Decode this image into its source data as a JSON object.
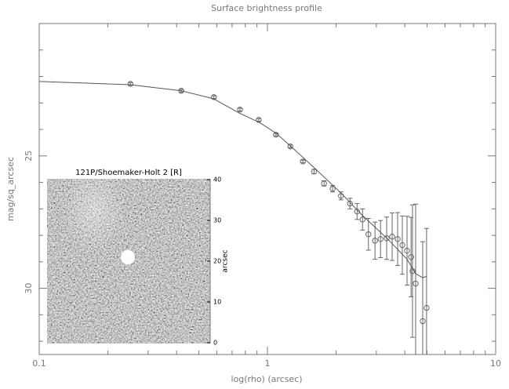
{
  "chart_data": {
    "type": "scatter",
    "title": "Surface brightness profile",
    "x_label": "log(rho) (arcsec)",
    "y_label": "mag/sq_arcsec",
    "x_scale": "log",
    "xlim": [
      0.1,
      10
    ],
    "xticks": [
      0.1,
      1,
      10
    ],
    "x_minor_ticks": [
      0.2,
      0.3,
      0.4,
      0.5,
      0.6,
      0.7,
      0.8,
      0.9,
      2,
      3,
      4,
      5,
      6,
      7,
      8,
      9
    ],
    "ylim": [
      20,
      32.5
    ],
    "y_inverted": true,
    "yticks": [
      25,
      30
    ],
    "y_minor_ticks": [
      21,
      22,
      23,
      24,
      26,
      27,
      28,
      29,
      31,
      32
    ],
    "series": [
      {
        "type": "errorbar",
        "color": "#666",
        "x": [
          0.251,
          0.419,
          0.583,
          0.758,
          0.916,
          1.09,
          1.26,
          1.43,
          1.6,
          1.77,
          1.93,
          2.1,
          2.3,
          2.47,
          2.61,
          2.77,
          2.96,
          3.13,
          3.33,
          3.52,
          3.72,
          3.9,
          4.09,
          4.26,
          4.32,
          4.46,
          4.79,
          4.98
        ],
        "values": [
          22.28,
          22.54,
          22.78,
          23.25,
          23.64,
          24.2,
          24.64,
          25.21,
          25.59,
          26.04,
          26.24,
          26.51,
          26.8,
          27.1,
          27.4,
          27.96,
          28.2,
          28.14,
          28.11,
          28.05,
          28.14,
          28.37,
          28.58,
          28.82,
          29.35,
          29.82,
          31.24,
          30.74
        ],
        "errors": [
          0.05,
          0.05,
          0.05,
          0.05,
          0.05,
          0.05,
          0.05,
          0.05,
          0.08,
          0.1,
          0.12,
          0.15,
          0.2,
          0.3,
          0.4,
          0.6,
          0.7,
          0.7,
          0.8,
          0.9,
          1.0,
          1.1,
          1.3,
          1.5,
          2.5,
          3,
          3,
          3
        ]
      },
      {
        "type": "line",
        "color": "#555",
        "x": [
          0.1,
          0.25,
          0.42,
          0.58,
          0.76,
          0.92,
          1.09,
          1.26,
          1.6,
          2.1,
          2.61,
          3.33,
          4.09,
          4.46,
          4.79,
          4.98
        ],
        "values": [
          22.19,
          22.31,
          22.54,
          22.84,
          23.4,
          23.73,
          24.14,
          24.62,
          25.44,
          26.4,
          27.25,
          28.1,
          28.9,
          29.45,
          29.6,
          29.55
        ]
      }
    ]
  },
  "inset": {
    "title": "121P/Shoemaker-Holt 2 [R]",
    "y_label": "arcsec",
    "ylim": [
      0,
      40
    ],
    "yticks": [
      0,
      10,
      20,
      30,
      40
    ]
  }
}
